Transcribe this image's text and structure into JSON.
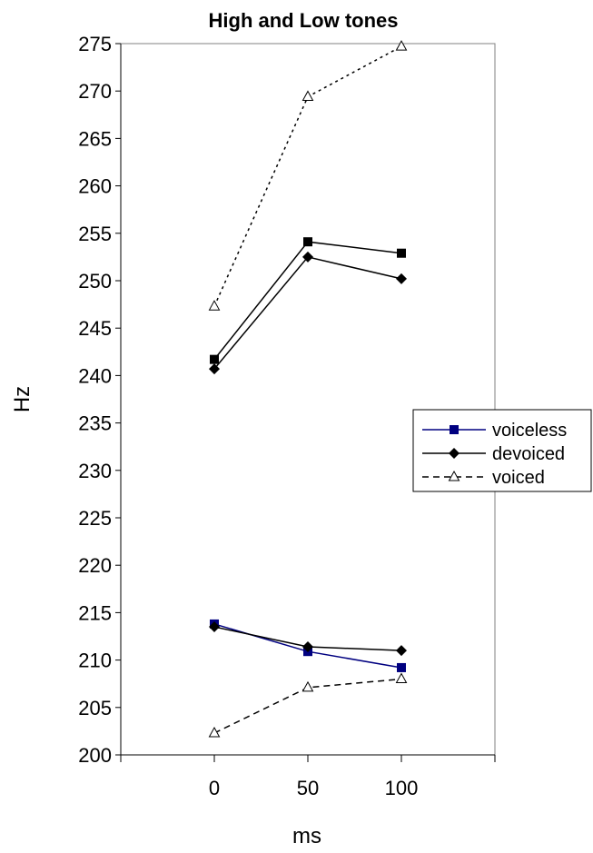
{
  "chart_data": {
    "type": "line",
    "title": "High and Low tones",
    "xlabel": "ms",
    "ylabel": "Hz",
    "x": [
      0,
      50,
      100
    ],
    "x_tick_labels": [
      "0",
      "50",
      "100"
    ],
    "xlim": [
      -50,
      150
    ],
    "ylim": [
      200,
      275
    ],
    "y_ticks": [
      200,
      205,
      210,
      215,
      220,
      225,
      230,
      235,
      240,
      245,
      250,
      255,
      260,
      265,
      270,
      275
    ],
    "grid": false,
    "legend_position": "right",
    "series": [
      {
        "name": "voiceless",
        "group": "high",
        "color": "#000000",
        "marker": "square",
        "dash": "solid",
        "values": [
          241.7,
          254.1,
          252.9
        ]
      },
      {
        "name": "devoiced",
        "group": "high",
        "color": "#000000",
        "marker": "diamond",
        "dash": "solid",
        "values": [
          240.7,
          252.5,
          250.2
        ]
      },
      {
        "name": "voiced",
        "group": "high",
        "color": "#000000",
        "marker": "triangle",
        "dash": "dotted",
        "values": [
          247.3,
          269.4,
          274.7
        ]
      },
      {
        "name": "voiceless",
        "group": "low",
        "color": "#000080",
        "marker": "square",
        "dash": "solid",
        "values": [
          213.8,
          210.9,
          209.2
        ]
      },
      {
        "name": "devoiced",
        "group": "low",
        "color": "#000000",
        "marker": "diamond",
        "dash": "solid",
        "values": [
          213.5,
          211.4,
          211.0
        ]
      },
      {
        "name": "voiced",
        "group": "low",
        "color": "#000000",
        "marker": "triangle",
        "dash": "dashed",
        "values": [
          202.3,
          207.1,
          208.0
        ]
      }
    ],
    "legend": [
      {
        "label": "voiceless",
        "color": "#000080",
        "marker": "square",
        "dash": "solid"
      },
      {
        "label": "devoiced",
        "color": "#000000",
        "marker": "diamond",
        "dash": "solid"
      },
      {
        "label": "voiced",
        "color": "#000000",
        "marker": "triangle",
        "dash": "dashed"
      }
    ]
  }
}
